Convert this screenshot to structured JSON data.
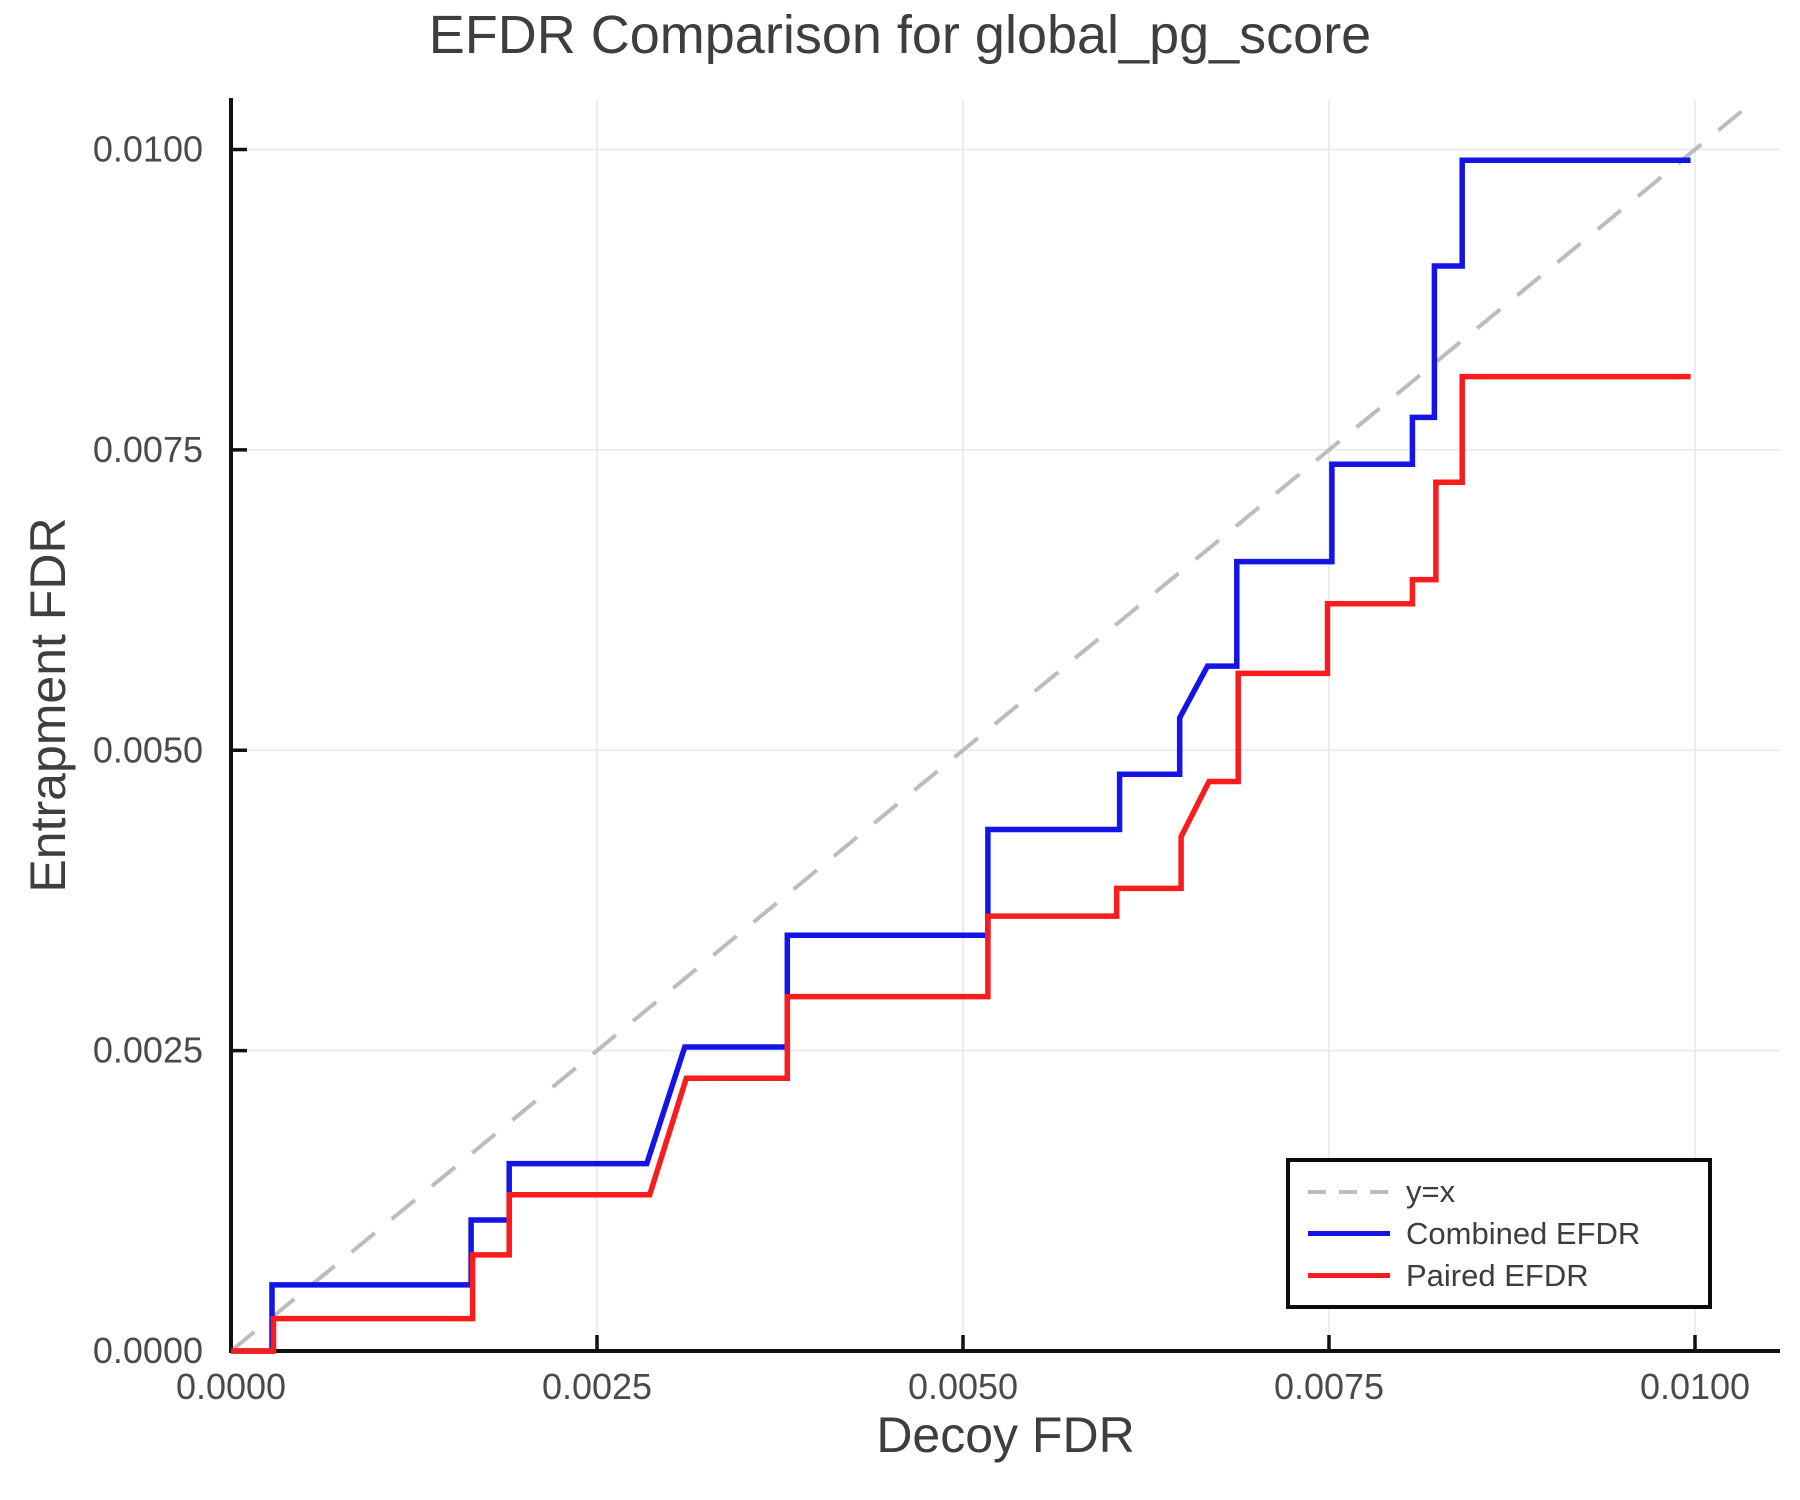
{
  "title": "EFDR Comparison for global_pg_score",
  "axes": {
    "xlabel": "Decoy FDR",
    "ylabel": "Entrapment FDR",
    "x_tick_values": [
      0,
      0.0025,
      0.005,
      0.0075,
      0.01
    ],
    "x_tick_labels": [
      "0.0000",
      "0.0025",
      "0.0050",
      "0.0075",
      "0.0100"
    ],
    "y_tick_values": [
      0,
      0.0025,
      0.005,
      0.0075,
      0.01
    ],
    "y_tick_labels": [
      "0.0000",
      "0.0025",
      "0.0050",
      "0.0075",
      "0.0100"
    ],
    "x_range": [
      0,
      0.01057
    ],
    "y_range": [
      0,
      0.01041
    ],
    "grid": true
  },
  "legend": {
    "position": "bottom-right-inside",
    "items": [
      {
        "label": "y=x",
        "color": "#bcbcbc",
        "style": "dashed"
      },
      {
        "label": "Combined EFDR",
        "color": "#1414e6",
        "style": "solid"
      },
      {
        "label": "Paired EFDR",
        "color": "#f81c1c",
        "style": "solid"
      }
    ]
  },
  "chart_data": {
    "type": "line",
    "title": "EFDR Comparison for global_pg_score",
    "xlabel": "Decoy FDR",
    "ylabel": "Entrapment FDR",
    "xlim": [
      0,
      0.01057
    ],
    "ylim": [
      0,
      0.01041
    ],
    "identity_line": {
      "name": "y=x",
      "color": "#bcbcbc",
      "dashed": true,
      "from": 0,
      "to": 0.010412
    },
    "series": [
      {
        "name": "Combined EFDR",
        "color": "#1414e6",
        "points": [
          [
            0,
            0
          ],
          [
            0.00028,
            0
          ],
          [
            0.00028,
            0.00055
          ],
          [
            0.00164,
            0.00055
          ],
          [
            0.00164,
            0.00109
          ],
          [
            0.0019,
            0.00109
          ],
          [
            0.0019,
            0.00156
          ],
          [
            0.00284,
            0.00156
          ],
          [
            0.0031,
            0.00253
          ],
          [
            0.0038,
            0.00253
          ],
          [
            0.0038,
            0.00346
          ],
          [
            0.00517,
            0.00346
          ],
          [
            0.00517,
            0.00434
          ],
          [
            0.00607,
            0.00434
          ],
          [
            0.00607,
            0.0048
          ],
          [
            0.00648,
            0.0048
          ],
          [
            0.00648,
            0.00527
          ],
          [
            0.00667,
            0.0057
          ],
          [
            0.00687,
            0.0057
          ],
          [
            0.00687,
            0.00657
          ],
          [
            0.00752,
            0.00657
          ],
          [
            0.00752,
            0.00738
          ],
          [
            0.00807,
            0.00738
          ],
          [
            0.00807,
            0.00777
          ],
          [
            0.00822,
            0.00777
          ],
          [
            0.00822,
            0.00903
          ],
          [
            0.00841,
            0.00903
          ],
          [
            0.00841,
            0.00991
          ],
          [
            0.00997,
            0.00991
          ]
        ]
      },
      {
        "name": "Paired EFDR",
        "color": "#f81c1c",
        "points": [
          [
            0,
            0
          ],
          [
            0.00029,
            0
          ],
          [
            0.00029,
            0.00027
          ],
          [
            0.00165,
            0.00027
          ],
          [
            0.00165,
            0.0008
          ],
          [
            0.0019,
            0.0008
          ],
          [
            0.0019,
            0.0013
          ],
          [
            0.00286,
            0.0013
          ],
          [
            0.00311,
            0.00227
          ],
          [
            0.0038,
            0.00227
          ],
          [
            0.0038,
            0.00295
          ],
          [
            0.00517,
            0.00295
          ],
          [
            0.00517,
            0.00362
          ],
          [
            0.00605,
            0.00362
          ],
          [
            0.00605,
            0.00385
          ],
          [
            0.00649,
            0.00385
          ],
          [
            0.00649,
            0.00428
          ],
          [
            0.00668,
            0.00474
          ],
          [
            0.00688,
            0.00474
          ],
          [
            0.00688,
            0.00564
          ],
          [
            0.00749,
            0.00564
          ],
          [
            0.00749,
            0.00622
          ],
          [
            0.00807,
            0.00622
          ],
          [
            0.00807,
            0.00642
          ],
          [
            0.00823,
            0.00642
          ],
          [
            0.00823,
            0.00723
          ],
          [
            0.00841,
            0.00723
          ],
          [
            0.00841,
            0.00811
          ],
          [
            0.00997,
            0.00811
          ]
        ]
      }
    ]
  },
  "style": {
    "grid_color": "#ececec",
    "spine_color": "#111111",
    "tick_label_color": "#4a4a4a",
    "dash_pattern": [
      30,
      22
    ]
  }
}
